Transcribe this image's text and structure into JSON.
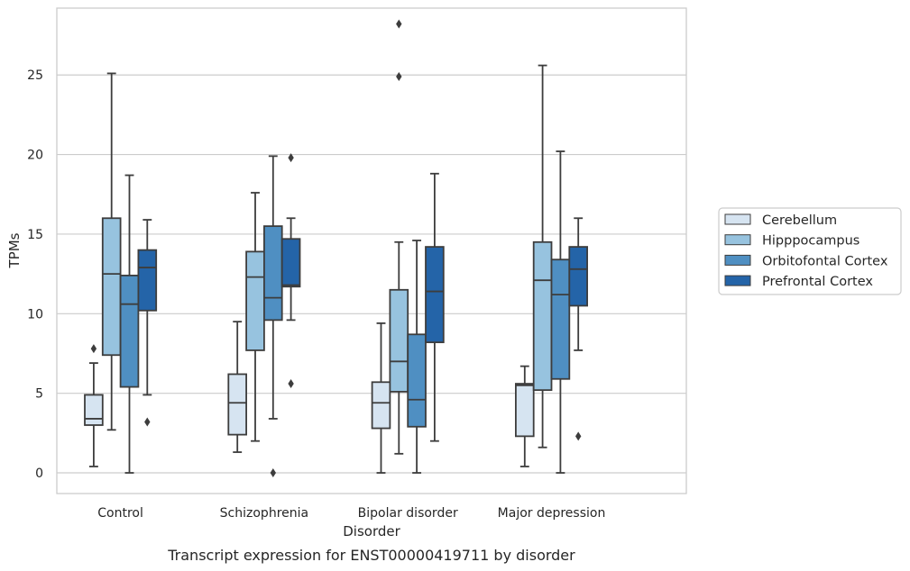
{
  "chart_data": {
    "type": "box",
    "title": "",
    "caption": "Transcript expression for ENST00000419711 by disorder",
    "xlabel": "Disorder",
    "ylabel": "TPMs",
    "ylim": [
      -1.3,
      29.2
    ],
    "yticks": [
      0,
      5,
      10,
      15,
      20,
      25
    ],
    "grid": "horizontal",
    "legend_position": "right",
    "categories": [
      "Control",
      "Schizophrenia",
      "Bipolar disorder",
      "Major depression"
    ],
    "series": [
      {
        "name": "Cerebellum",
        "color": "#d6e4f1",
        "boxes": [
          {
            "whislo": 0.4,
            "q1": 3.0,
            "med": 3.4,
            "q3": 4.9,
            "whishi": 6.9,
            "fliers": [
              7.8
            ]
          },
          {
            "whislo": 1.3,
            "q1": 2.4,
            "med": 4.4,
            "q3": 6.2,
            "whishi": 9.5,
            "fliers": []
          },
          {
            "whislo": 0.0,
            "q1": 2.8,
            "med": 4.4,
            "q3": 5.7,
            "whishi": 9.4,
            "fliers": []
          },
          {
            "whislo": 0.4,
            "q1": 2.3,
            "med": 5.5,
            "q3": 5.6,
            "whishi": 6.7,
            "fliers": []
          }
        ]
      },
      {
        "name": "Hipppocampus",
        "color": "#97c3df",
        "boxes": [
          {
            "whislo": 2.7,
            "q1": 7.4,
            "med": 12.5,
            "q3": 16.0,
            "whishi": 25.1,
            "fliers": []
          },
          {
            "whislo": 2.0,
            "q1": 7.7,
            "med": 12.3,
            "q3": 13.9,
            "whishi": 17.6,
            "fliers": []
          },
          {
            "whislo": 1.2,
            "q1": 5.1,
            "med": 7.0,
            "q3": 11.5,
            "whishi": 14.5,
            "fliers": [
              24.9,
              28.2
            ]
          },
          {
            "whislo": 1.6,
            "q1": 5.2,
            "med": 12.1,
            "q3": 14.5,
            "whishi": 25.6,
            "fliers": []
          }
        ]
      },
      {
        "name": "Orbitofontal Cortex",
        "color": "#4f8fc2",
        "boxes": [
          {
            "whislo": 0.0,
            "q1": 5.4,
            "med": 10.6,
            "q3": 12.4,
            "whishi": 18.7,
            "fliers": []
          },
          {
            "whislo": 3.4,
            "q1": 9.6,
            "med": 11.0,
            "q3": 15.5,
            "whishi": 19.9,
            "fliers": [
              0.0
            ]
          },
          {
            "whislo": 0.0,
            "q1": 2.9,
            "med": 4.6,
            "q3": 8.7,
            "whishi": 14.6,
            "fliers": []
          },
          {
            "whislo": 0.0,
            "q1": 5.9,
            "med": 11.2,
            "q3": 13.4,
            "whishi": 20.2,
            "fliers": []
          }
        ]
      },
      {
        "name": "Prefrontal Cortex",
        "color": "#2464a8",
        "boxes": [
          {
            "whislo": 4.9,
            "q1": 10.2,
            "med": 12.9,
            "q3": 14.0,
            "whishi": 15.9,
            "fliers": [
              3.2
            ]
          },
          {
            "whislo": 9.6,
            "q1": 11.7,
            "med": 11.8,
            "q3": 14.7,
            "whishi": 16.0,
            "fliers": [
              5.6,
              19.8
            ]
          },
          {
            "whislo": 2.0,
            "q1": 8.2,
            "med": 11.4,
            "q3": 14.2,
            "whishi": 18.8,
            "fliers": []
          },
          {
            "whislo": 7.7,
            "q1": 10.5,
            "med": 12.8,
            "q3": 14.2,
            "whishi": 16.0,
            "fliers": [
              2.3
            ]
          }
        ]
      }
    ]
  }
}
